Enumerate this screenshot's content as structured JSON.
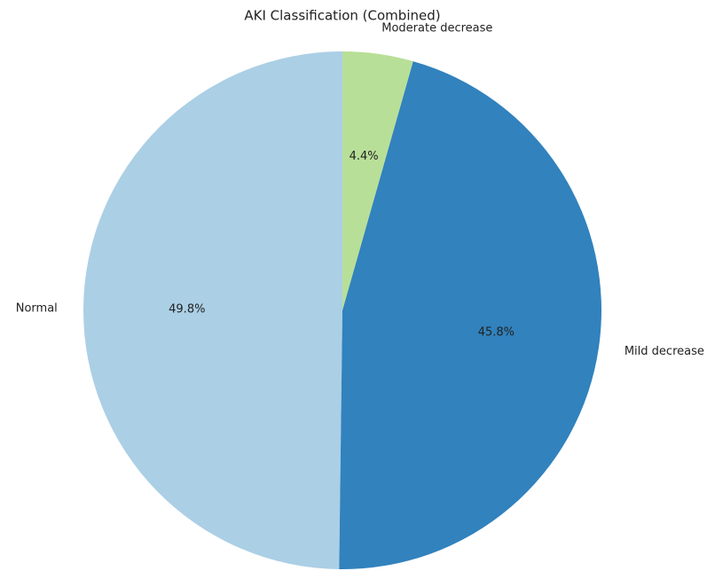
{
  "chart_data": {
    "type": "pie",
    "title": "AKI Classification (Combined)",
    "categories": [
      "Normal",
      "Mild decrease",
      "Moderate decrease"
    ],
    "values": [
      49.8,
      45.8,
      4.4
    ],
    "value_labels": [
      "49.8%",
      "45.8%",
      "4.4%"
    ],
    "colors": [
      "#abcfe5",
      "#3182bd",
      "#b8df98"
    ]
  }
}
